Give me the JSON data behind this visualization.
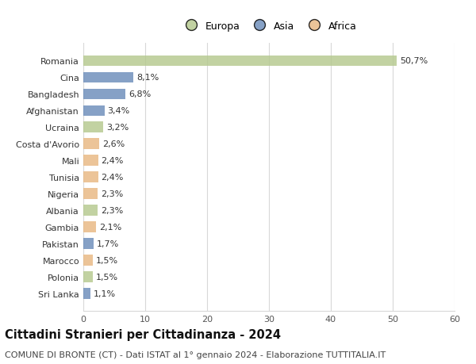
{
  "countries": [
    "Romania",
    "Cina",
    "Bangladesh",
    "Afghanistan",
    "Ucraina",
    "Costa d'Avorio",
    "Mali",
    "Tunisia",
    "Nigeria",
    "Albania",
    "Gambia",
    "Pakistan",
    "Marocco",
    "Polonia",
    "Sri Lanka"
  ],
  "values": [
    50.7,
    8.1,
    6.8,
    3.4,
    3.2,
    2.6,
    2.4,
    2.4,
    2.3,
    2.3,
    2.1,
    1.7,
    1.5,
    1.5,
    1.1
  ],
  "labels": [
    "50,7%",
    "8,1%",
    "6,8%",
    "3,4%",
    "3,2%",
    "2,6%",
    "2,4%",
    "2,4%",
    "2,3%",
    "2,3%",
    "2,1%",
    "1,7%",
    "1,5%",
    "1,5%",
    "1,1%"
  ],
  "continents": [
    "Europa",
    "Asia",
    "Asia",
    "Asia",
    "Europa",
    "Africa",
    "Africa",
    "Africa",
    "Africa",
    "Europa",
    "Africa",
    "Asia",
    "Africa",
    "Europa",
    "Asia"
  ],
  "colors": {
    "Europa": "#b5c98e",
    "Asia": "#6b8cba",
    "Africa": "#e8b882"
  },
  "legend_order": [
    "Europa",
    "Asia",
    "Africa"
  ],
  "title": "Cittadini Stranieri per Cittadinanza - 2024",
  "subtitle": "COMUNE DI BRONTE (CT) - Dati ISTAT al 1° gennaio 2024 - Elaborazione TUTTITALIA.IT",
  "xlim": [
    0,
    60
  ],
  "xticks": [
    0,
    10,
    20,
    30,
    40,
    50,
    60
  ],
  "background_color": "#ffffff",
  "grid_color": "#d8d8d8",
  "bar_height": 0.65,
  "title_fontsize": 10.5,
  "subtitle_fontsize": 8,
  "tick_fontsize": 8,
  "label_fontsize": 8,
  "legend_fontsize": 9,
  "bar_alpha": 0.82
}
